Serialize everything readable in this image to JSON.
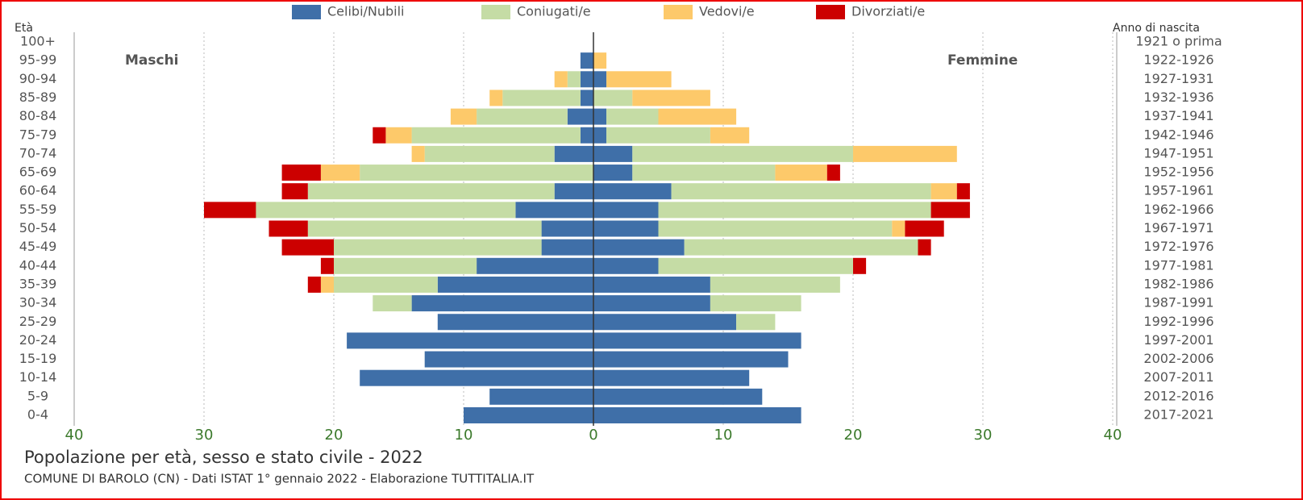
{
  "chart_data": {
    "type": "pyramid",
    "title": "Popolazione per età, sesso e stato civile - 2022",
    "source": "COMUNE DI BAROLO (CN) - Dati ISTAT 1° gennaio 2022 - Elaborazione TUTTITALIA.IT",
    "y_label": "Età",
    "y2_label": "Anno di nascita",
    "left_label": "Maschi",
    "right_label": "Femmine",
    "categories": [
      "100+",
      "95-99",
      "90-94",
      "85-89",
      "80-84",
      "75-79",
      "70-74",
      "65-69",
      "60-64",
      "55-59",
      "50-54",
      "45-49",
      "40-44",
      "35-39",
      "30-34",
      "25-29",
      "20-24",
      "15-19",
      "10-14",
      "5-9",
      "0-4"
    ],
    "birth_years": [
      "1921 o prima",
      "1922-1926",
      "1927-1931",
      "1932-1936",
      "1937-1941",
      "1942-1946",
      "1947-1951",
      "1952-1956",
      "1957-1961",
      "1962-1966",
      "1967-1971",
      "1972-1976",
      "1977-1981",
      "1982-1986",
      "1987-1991",
      "1992-1996",
      "1997-2001",
      "2002-2006",
      "2007-2011",
      "2012-2016",
      "2017-2021"
    ],
    "series": [
      {
        "name": "Celibi/Nubili",
        "color": "#3f6fa8",
        "left": [
          0,
          1,
          1,
          1,
          2,
          1,
          3,
          0,
          3,
          6,
          4,
          4,
          9,
          12,
          14,
          12,
          19,
          13,
          18,
          8,
          10
        ],
        "right": [
          0,
          0,
          1,
          0,
          1,
          1,
          3,
          3,
          6,
          5,
          5,
          7,
          5,
          9,
          9,
          11,
          16,
          15,
          12,
          13,
          16
        ]
      },
      {
        "name": "Coniugati/e",
        "color": "#c5dca5",
        "left": [
          0,
          0,
          1,
          6,
          7,
          13,
          10,
          18,
          19,
          20,
          18,
          16,
          11,
          8,
          3,
          0,
          0,
          0,
          0,
          0,
          0
        ],
        "right": [
          0,
          0,
          0,
          3,
          4,
          8,
          17,
          11,
          20,
          21,
          18,
          18,
          15,
          10,
          7,
          3,
          0,
          0,
          0,
          0,
          0
        ]
      },
      {
        "name": "Vedovi/e",
        "color": "#fdc96a",
        "left": [
          0,
          0,
          1,
          1,
          2,
          2,
          1,
          3,
          0,
          0,
          0,
          0,
          0,
          1,
          0,
          0,
          0,
          0,
          0,
          0,
          0
        ],
        "right": [
          0,
          1,
          5,
          6,
          6,
          3,
          8,
          4,
          2,
          0,
          1,
          0,
          0,
          0,
          0,
          0,
          0,
          0,
          0,
          0,
          0
        ]
      },
      {
        "name": "Divorziati/e",
        "color": "#cc0000",
        "left": [
          0,
          0,
          0,
          0,
          0,
          1,
          0,
          3,
          2,
          4,
          3,
          4,
          1,
          1,
          0,
          0,
          0,
          0,
          0,
          0,
          0
        ],
        "right": [
          0,
          0,
          0,
          0,
          0,
          0,
          0,
          1,
          1,
          3,
          3,
          1,
          1,
          0,
          0,
          0,
          0,
          0,
          0,
          0,
          0
        ]
      }
    ],
    "xlim": [
      -40,
      40
    ],
    "xticks": [
      {
        "value": -40,
        "label": "40"
      },
      {
        "value": -30,
        "label": "30"
      },
      {
        "value": -20,
        "label": "20"
      },
      {
        "value": -10,
        "label": "10"
      },
      0,
      10,
      20,
      30,
      40
    ],
    "grid": true
  }
}
